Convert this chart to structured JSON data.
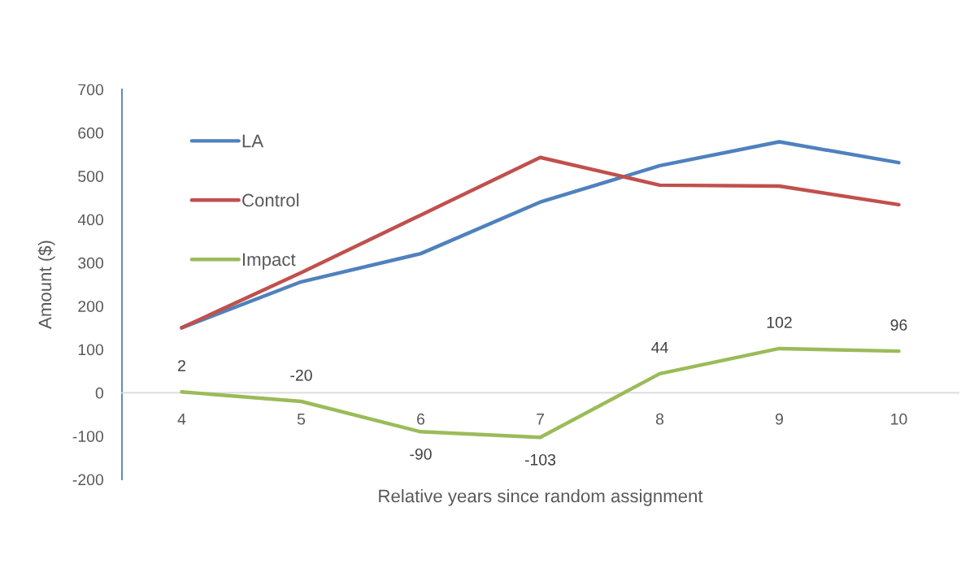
{
  "chart_data": {
    "type": "line",
    "xlabel": "Relative years since random assignment",
    "ylabel": "Amount ($)",
    "categories": [
      "4",
      "5",
      "6",
      "7",
      "8",
      "9",
      "10"
    ],
    "ylim": [
      -200,
      700
    ],
    "yticks": [
      -200,
      -100,
      0,
      100,
      200,
      300,
      400,
      500,
      600,
      700
    ],
    "legend": "top left",
    "line_style": "solid",
    "series": [
      {
        "name": "LA",
        "color": "#4f81bd",
        "values": [
          150,
          256,
          321,
          440,
          524,
          579,
          531
        ]
      },
      {
        "name": "Control",
        "color": "#c0504d",
        "values": [
          150,
          277,
          410,
          543,
          479,
          477,
          434
        ]
      },
      {
        "name": "Impact",
        "color": "#9bbb59",
        "values": [
          2,
          -20,
          -90,
          -103,
          44,
          102,
          96
        ],
        "value_labels": [
          "2",
          "-20",
          "-90",
          "-103",
          "44",
          "102",
          "96"
        ]
      }
    ]
  }
}
